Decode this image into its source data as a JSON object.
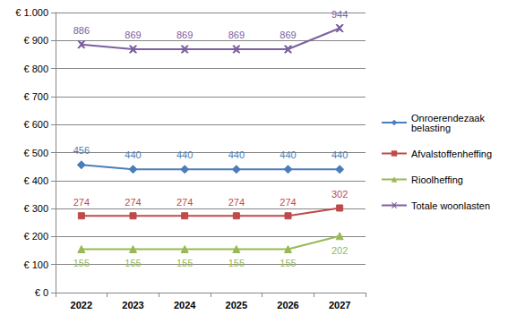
{
  "chart_data": {
    "type": "line",
    "categories": [
      "2022",
      "2023",
      "2024",
      "2025",
      "2026",
      "2027"
    ],
    "series": [
      {
        "name": "Onroerendezaak belasting",
        "color": "#4a7ebb",
        "marker": "diamond",
        "values": [
          456,
          440,
          440,
          440,
          440,
          440
        ]
      },
      {
        "name": "Afvalstoffenheffing",
        "color": "#be4b48",
        "marker": "square",
        "values": [
          274,
          274,
          274,
          274,
          274,
          302
        ]
      },
      {
        "name": "Rioolheffing",
        "color": "#98b954",
        "marker": "triangle",
        "values": [
          155,
          155,
          155,
          155,
          155,
          202
        ]
      },
      {
        "name": "Totale woonlasten",
        "color": "#7d60a0",
        "marker": "x",
        "values": [
          886,
          869,
          869,
          869,
          869,
          944
        ]
      }
    ],
    "ylim": [
      0,
      1000
    ],
    "yticks": [
      {
        "value": 0,
        "label": "€ 0"
      },
      {
        "value": 100,
        "label": "€ 100"
      },
      {
        "value": 200,
        "label": "€ 200"
      },
      {
        "value": 300,
        "label": "€ 300"
      },
      {
        "value": 400,
        "label": "€ 400"
      },
      {
        "value": 500,
        "label": "€ 500"
      },
      {
        "value": 600,
        "label": "€ 600"
      },
      {
        "value": 700,
        "label": "€ 700"
      },
      {
        "value": 800,
        "label": "€ 800"
      },
      {
        "value": 900,
        "label": "€ 900"
      },
      {
        "value": 1000,
        "label": "€ 1.000"
      }
    ],
    "grid": true,
    "legend": "right",
    "data_labels": true
  }
}
